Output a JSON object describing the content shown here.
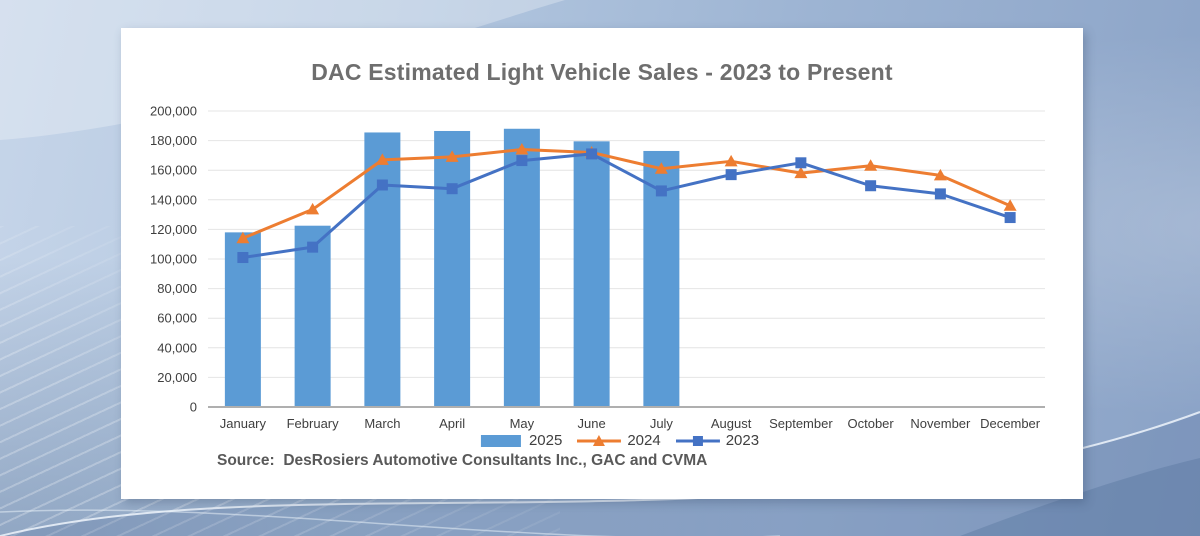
{
  "page": {
    "title": "DAC Estimated Light Vehicle Sales - 2023 to Present",
    "source_text": "Source:  DesRosiers Automotive Consultants Inc., GAC and CVMA"
  },
  "colors": {
    "bar_2025": "#5B9BD5",
    "line_2024": "#ED7D31",
    "line_2023": "#4472C4",
    "gridline": "#E4E4E4",
    "axis_line": "#AFAFAF",
    "axis_text": "#3F3F3F",
    "title_text": "#6E6E6E",
    "source_text": "#595959",
    "card_background": "#FFFFFF",
    "slide_background_blue": "#9DB4D3"
  },
  "chart_data": {
    "type": "combo-bar-line",
    "title": "DAC Estimated Light Vehicle Sales - 2023 to Present",
    "categories": [
      "January",
      "February",
      "March",
      "April",
      "May",
      "June",
      "July",
      "August",
      "September",
      "October",
      "November",
      "December"
    ],
    "y_axis": {
      "min": 0,
      "max": 200000,
      "step": 20000,
      "tick_labels": [
        "0",
        "20,000",
        "40,000",
        "60,000",
        "80,000",
        "100,000",
        "120,000",
        "140,000",
        "160,000",
        "180,000",
        "200,000"
      ]
    },
    "grid": "horizontal",
    "legend_position": "bottom",
    "series": [
      {
        "name": "2025",
        "type": "bar",
        "color": "#5B9BD5",
        "values": [
          118000,
          122500,
          185500,
          186500,
          188000,
          179500,
          173000,
          null,
          null,
          null,
          null,
          null
        ]
      },
      {
        "name": "2024",
        "type": "line",
        "marker": "triangle",
        "color": "#ED7D31",
        "values": [
          114000,
          133500,
          167000,
          169000,
          174000,
          172000,
          161000,
          166000,
          158000,
          163000,
          156500,
          136000
        ]
      },
      {
        "name": "2023",
        "type": "line",
        "marker": "square",
        "color": "#4472C4",
        "values": [
          101000,
          108000,
          150000,
          147500,
          166500,
          171000,
          146000,
          157000,
          165000,
          149500,
          144000,
          128000
        ]
      }
    ]
  }
}
